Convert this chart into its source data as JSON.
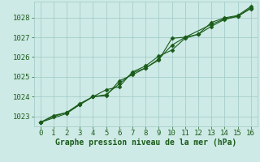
{
  "xlabel": "Graphe pression niveau de la mer (hPa)",
  "xlim": [
    -0.5,
    16.5
  ],
  "ylim": [
    1022.5,
    1028.8
  ],
  "yticks": [
    1023,
    1024,
    1025,
    1026,
    1027,
    1028
  ],
  "xticks": [
    0,
    1,
    2,
    3,
    4,
    5,
    6,
    7,
    8,
    9,
    10,
    11,
    12,
    13,
    14,
    15,
    16
  ],
  "background_color": "#ceeae6",
  "grid_color": "#9dc8c4",
  "line_color": "#1a5c1a",
  "series1_x": [
    0,
    1,
    2,
    3,
    4,
    5,
    6,
    7,
    8,
    9,
    10,
    11,
    12,
    13,
    14,
    15,
    16
  ],
  "series1_y": [
    1022.7,
    1023.05,
    1023.2,
    1023.65,
    1024.0,
    1024.05,
    1024.8,
    1025.1,
    1025.45,
    1025.85,
    1026.95,
    1027.0,
    1027.15,
    1027.55,
    1027.9,
    1028.05,
    1028.45
  ],
  "series2_x": [
    0,
    1,
    2,
    3,
    4,
    5,
    6,
    7,
    8,
    9,
    10,
    11,
    12,
    13,
    14,
    15,
    16
  ],
  "series2_y": [
    1022.7,
    1023.0,
    1023.2,
    1023.6,
    1024.0,
    1024.35,
    1024.5,
    1025.25,
    1025.55,
    1026.05,
    1026.35,
    1026.95,
    1027.15,
    1027.75,
    1027.98,
    1028.1,
    1028.55
  ],
  "series3_x": [
    0,
    2,
    3,
    4,
    5,
    6,
    7,
    8,
    9,
    10,
    11,
    13,
    14,
    15,
    16
  ],
  "series3_y": [
    1022.7,
    1023.15,
    1023.6,
    1024.0,
    1024.1,
    1024.65,
    1025.2,
    1025.45,
    1025.9,
    1026.6,
    1027.0,
    1027.65,
    1027.93,
    1028.07,
    1028.48
  ],
  "font_color": "#1a5c1a",
  "tick_fontsize": 6.5,
  "label_fontsize": 7,
  "marker": "D",
  "marker_size": 2.5,
  "line_width": 0.8
}
